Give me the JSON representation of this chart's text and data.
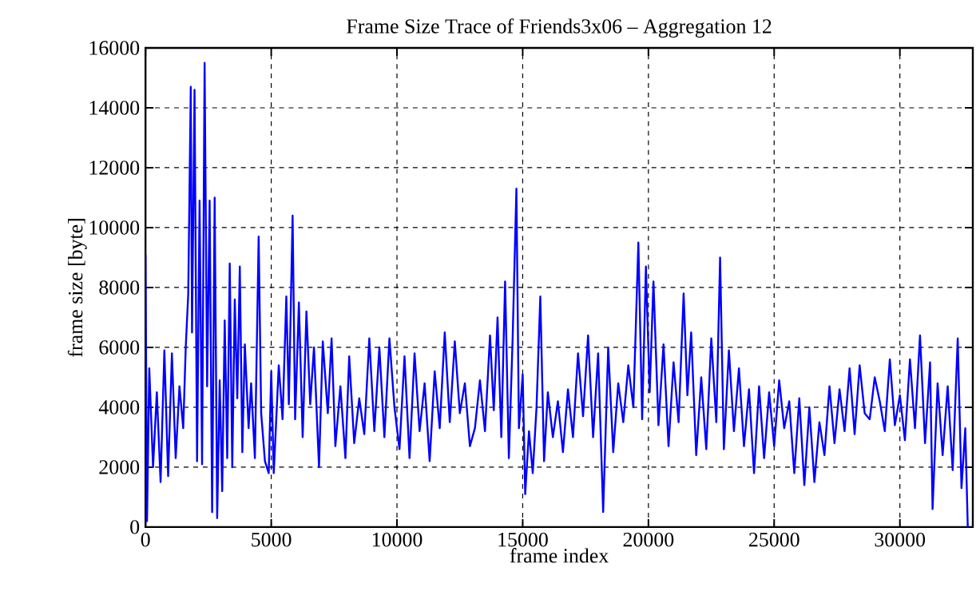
{
  "chart_data": {
    "type": "line",
    "title": "Frame Size Trace of Friends3x06 – Aggregation 12",
    "xlabel": "frame index",
    "ylabel": "frame size [byte]",
    "xlim": [
      0,
      32900
    ],
    "ylim": [
      0,
      16000
    ],
    "xticks": [
      0,
      5000,
      10000,
      15000,
      20000,
      25000,
      30000
    ],
    "yticks": [
      0,
      2000,
      4000,
      6000,
      8000,
      10000,
      12000,
      14000,
      16000
    ],
    "grid": true,
    "line_style": "solid",
    "series": [
      {
        "color": "#0000ff",
        "x": [
          0,
          60,
          150,
          300,
          450,
          600,
          750,
          900,
          1050,
          1200,
          1350,
          1500,
          1600,
          1700,
          1800,
          1850,
          1950,
          2050,
          2150,
          2250,
          2350,
          2450,
          2550,
          2650,
          2750,
          2850,
          2950,
          3050,
          3150,
          3250,
          3350,
          3450,
          3550,
          3650,
          3750,
          3850,
          3950,
          4100,
          4200,
          4350,
          4500,
          4600,
          4750,
          4900,
          5000,
          5100,
          5300,
          5450,
          5600,
          5700,
          5850,
          5950,
          6100,
          6250,
          6400,
          6550,
          6700,
          6900,
          7050,
          7250,
          7400,
          7550,
          7750,
          7950,
          8100,
          8300,
          8500,
          8700,
          8900,
          9100,
          9300,
          9500,
          9700,
          9900,
          10100,
          10300,
          10500,
          10700,
          10900,
          11100,
          11300,
          11500,
          11700,
          11900,
          12100,
          12300,
          12500,
          12700,
          12900,
          13100,
          13300,
          13500,
          13700,
          13850,
          14000,
          14150,
          14300,
          14450,
          14600,
          14750,
          14850,
          15000,
          15100,
          15250,
          15400,
          15550,
          15700,
          15850,
          16000,
          16200,
          16400,
          16600,
          16800,
          17000,
          17200,
          17400,
          17600,
          17800,
          18000,
          18200,
          18400,
          18600,
          18800,
          19000,
          19200,
          19400,
          19600,
          19750,
          19900,
          20050,
          20200,
          20400,
          20600,
          20800,
          21000,
          21200,
          21400,
          21550,
          21700,
          21900,
          22100,
          22300,
          22500,
          22700,
          22850,
          23000,
          23200,
          23400,
          23600,
          23800,
          24000,
          24200,
          24400,
          24600,
          24800,
          25000,
          25200,
          25400,
          25600,
          25800,
          26000,
          26200,
          26400,
          26600,
          26800,
          27000,
          27200,
          27400,
          27600,
          27800,
          28000,
          28200,
          28400,
          28600,
          28800,
          29000,
          29200,
          29400,
          29600,
          29800,
          30000,
          30200,
          30400,
          30600,
          30800,
          31000,
          31200,
          31300,
          31500,
          31700,
          31900,
          32100,
          32300,
          32450,
          32600,
          32700
        ],
        "values": [
          9100,
          200,
          5300,
          2000,
          4500,
          1500,
          5900,
          1700,
          5800,
          2300,
          4700,
          3300,
          6000,
          7800,
          14700,
          6500,
          14600,
          2200,
          10900,
          2100,
          15500,
          4700,
          10900,
          500,
          11000,
          300,
          4900,
          1200,
          6900,
          2300,
          8800,
          2000,
          7600,
          4300,
          8700,
          2500,
          6100,
          3300,
          4800,
          2300,
          9700,
          3800,
          2200,
          1800,
          5200,
          1800,
          5400,
          3600,
          7700,
          4100,
          10400,
          3600,
          7500,
          3000,
          7200,
          4100,
          6000,
          2000,
          6200,
          3800,
          6300,
          2700,
          4700,
          2300,
          5700,
          2800,
          4300,
          3100,
          6300,
          3200,
          6000,
          3000,
          6300,
          4000,
          2600,
          5700,
          2300,
          5800,
          3200,
          4800,
          2200,
          5200,
          3300,
          6500,
          3500,
          6200,
          3800,
          4800,
          2700,
          3300,
          4900,
          3200,
          6400,
          3900,
          7000,
          3000,
          8200,
          2300,
          6300,
          11300,
          3300,
          5100,
          1100,
          3200,
          1800,
          4000,
          7700,
          2200,
          4500,
          3000,
          4200,
          2500,
          4600,
          3000,
          5800,
          3700,
          6400,
          3000,
          5800,
          500,
          6000,
          2500,
          4800,
          3500,
          5400,
          4000,
          9500,
          3600,
          8700,
          4500,
          8200,
          3400,
          6100,
          2700,
          5500,
          3500,
          7800,
          4400,
          6500,
          2400,
          5000,
          2600,
          6300,
          3500,
          9000,
          2600,
          5900,
          3200,
          5300,
          2700,
          4600,
          1800,
          4700,
          2300,
          4500,
          2700,
          4900,
          3300,
          4200,
          1800,
          4300,
          1400,
          4000,
          1500,
          3500,
          2400,
          4700,
          2800,
          4600,
          3200,
          5300,
          3100,
          5400,
          3800,
          3600,
          5000,
          4200,
          3200,
          5600,
          3400,
          4400,
          2900,
          5600,
          3300,
          6400,
          2800,
          5500,
          600,
          4800,
          2400,
          4700,
          1900,
          6300,
          1300,
          3300,
          0
        ]
      }
    ]
  }
}
